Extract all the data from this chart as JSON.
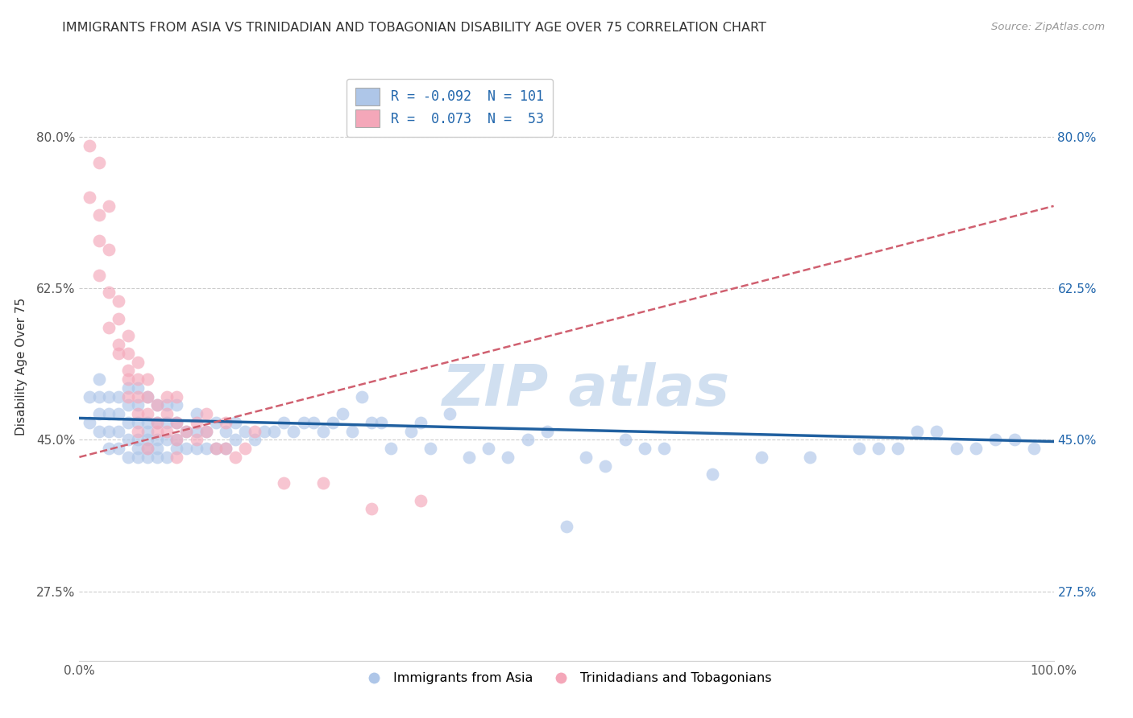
{
  "title": "IMMIGRANTS FROM ASIA VS TRINIDADIAN AND TOBAGONIAN DISABILITY AGE OVER 75 CORRELATION CHART",
  "source": "Source: ZipAtlas.com",
  "ylabel": "Disability Age Over 75",
  "xlim": [
    0,
    1
  ],
  "ylim": [
    0.195,
    0.875
  ],
  "yticks": [
    0.275,
    0.45,
    0.625,
    0.8
  ],
  "ytick_labels": [
    "27.5%",
    "45.0%",
    "62.5%",
    "80.0%"
  ],
  "xtick_labels": [
    "0.0%",
    "100.0%"
  ],
  "xticks": [
    0.0,
    1.0
  ],
  "blue_color": "#aec6e8",
  "pink_color": "#f4a7b9",
  "blue_line_color": "#2060a0",
  "pink_line_color": "#d06070",
  "watermark_color": "#d0dff0",
  "figsize": [
    14.06,
    8.92
  ],
  "dpi": 100,
  "blue_scatter_x": [
    0.01,
    0.01,
    0.02,
    0.02,
    0.02,
    0.02,
    0.03,
    0.03,
    0.03,
    0.03,
    0.04,
    0.04,
    0.04,
    0.04,
    0.05,
    0.05,
    0.05,
    0.05,
    0.05,
    0.06,
    0.06,
    0.06,
    0.06,
    0.06,
    0.06,
    0.07,
    0.07,
    0.07,
    0.07,
    0.07,
    0.07,
    0.08,
    0.08,
    0.08,
    0.08,
    0.08,
    0.09,
    0.09,
    0.09,
    0.09,
    0.1,
    0.1,
    0.1,
    0.1,
    0.11,
    0.11,
    0.12,
    0.12,
    0.12,
    0.13,
    0.13,
    0.14,
    0.14,
    0.15,
    0.15,
    0.16,
    0.16,
    0.17,
    0.18,
    0.19,
    0.2,
    0.21,
    0.22,
    0.23,
    0.24,
    0.25,
    0.26,
    0.27,
    0.28,
    0.29,
    0.3,
    0.31,
    0.32,
    0.34,
    0.35,
    0.36,
    0.38,
    0.4,
    0.42,
    0.44,
    0.46,
    0.48,
    0.5,
    0.52,
    0.54,
    0.56,
    0.58,
    0.6,
    0.65,
    0.7,
    0.75,
    0.8,
    0.82,
    0.84,
    0.86,
    0.88,
    0.9,
    0.92,
    0.94,
    0.96,
    0.98
  ],
  "blue_scatter_y": [
    0.47,
    0.5,
    0.46,
    0.48,
    0.5,
    0.52,
    0.44,
    0.46,
    0.48,
    0.5,
    0.44,
    0.46,
    0.48,
    0.5,
    0.43,
    0.45,
    0.47,
    0.49,
    0.51,
    0.43,
    0.44,
    0.45,
    0.47,
    0.49,
    0.51,
    0.43,
    0.44,
    0.45,
    0.46,
    0.47,
    0.5,
    0.43,
    0.44,
    0.45,
    0.47,
    0.49,
    0.43,
    0.45,
    0.47,
    0.49,
    0.44,
    0.45,
    0.47,
    0.49,
    0.44,
    0.46,
    0.44,
    0.46,
    0.48,
    0.44,
    0.46,
    0.44,
    0.47,
    0.44,
    0.46,
    0.45,
    0.47,
    0.46,
    0.45,
    0.46,
    0.46,
    0.47,
    0.46,
    0.47,
    0.47,
    0.46,
    0.47,
    0.48,
    0.46,
    0.5,
    0.47,
    0.47,
    0.44,
    0.46,
    0.47,
    0.44,
    0.48,
    0.43,
    0.44,
    0.43,
    0.45,
    0.46,
    0.35,
    0.43,
    0.42,
    0.45,
    0.44,
    0.44,
    0.41,
    0.43,
    0.43,
    0.44,
    0.44,
    0.44,
    0.46,
    0.46,
    0.44,
    0.44,
    0.45,
    0.45,
    0.44
  ],
  "pink_scatter_x": [
    0.01,
    0.01,
    0.02,
    0.02,
    0.02,
    0.02,
    0.03,
    0.03,
    0.03,
    0.03,
    0.04,
    0.04,
    0.04,
    0.04,
    0.05,
    0.05,
    0.05,
    0.05,
    0.05,
    0.06,
    0.06,
    0.06,
    0.06,
    0.06,
    0.07,
    0.07,
    0.07,
    0.07,
    0.08,
    0.08,
    0.08,
    0.09,
    0.09,
    0.09,
    0.1,
    0.1,
    0.1,
    0.1,
    0.11,
    0.12,
    0.12,
    0.13,
    0.13,
    0.14,
    0.15,
    0.15,
    0.16,
    0.17,
    0.18,
    0.21,
    0.25,
    0.3,
    0.35
  ],
  "pink_scatter_y": [
    0.73,
    0.79,
    0.71,
    0.68,
    0.64,
    0.77,
    0.62,
    0.67,
    0.72,
    0.58,
    0.59,
    0.55,
    0.61,
    0.56,
    0.53,
    0.57,
    0.52,
    0.55,
    0.5,
    0.52,
    0.54,
    0.48,
    0.5,
    0.46,
    0.5,
    0.52,
    0.48,
    0.44,
    0.47,
    0.49,
    0.46,
    0.48,
    0.46,
    0.5,
    0.45,
    0.47,
    0.5,
    0.43,
    0.46,
    0.45,
    0.47,
    0.46,
    0.48,
    0.44,
    0.44,
    0.47,
    0.43,
    0.44,
    0.46,
    0.4,
    0.4,
    0.37,
    0.38
  ],
  "blue_trend_x0": 0.0,
  "blue_trend_x1": 1.0,
  "blue_trend_y0": 0.475,
  "blue_trend_y1": 0.448,
  "pink_trend_x0": 0.0,
  "pink_trend_x1": 1.0,
  "pink_trend_y0": 0.43,
  "pink_trend_y1": 0.72
}
